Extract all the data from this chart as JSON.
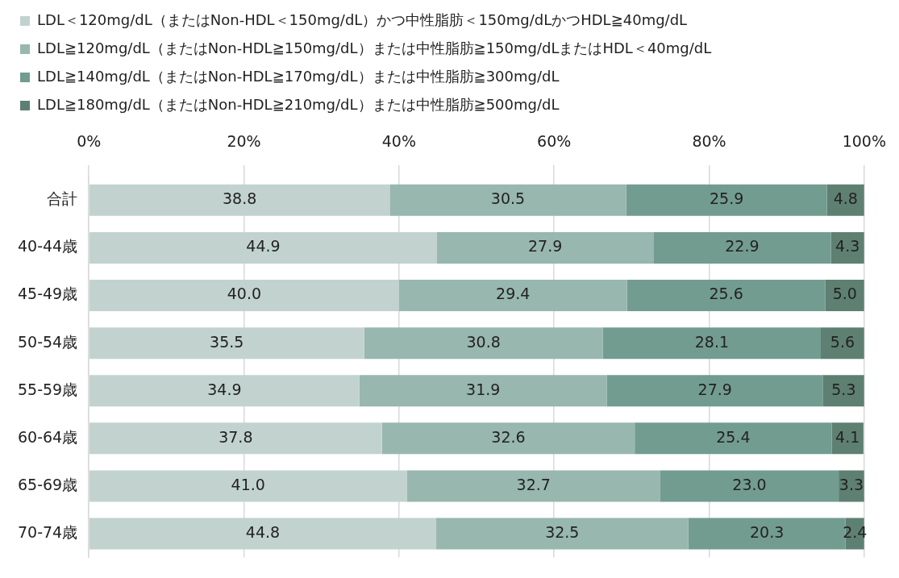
{
  "chart_data": {
    "type": "bar",
    "orientation": "horizontal",
    "stacked": true,
    "categories": [
      "合計",
      "40-44歳",
      "45-49歳",
      "50-54歳",
      "55-59歳",
      "60-64歳",
      "65-69歳",
      "70-74歳"
    ],
    "series": [
      {
        "name": "LDL＜120mg/dL（またはNon-HDL＜150mg/dL）かつ中性脂肪＜150mg/dLかつHDL≧40mg/dL",
        "color": "#c2d3cf",
        "values": [
          38.8,
          44.9,
          40.0,
          35.5,
          34.9,
          37.8,
          41.0,
          44.8
        ],
        "value_labels": [
          "38.8",
          "44.9",
          "40.0",
          "35.5",
          "34.9",
          "37.8",
          "41.0",
          "44.8"
        ]
      },
      {
        "name": "LDL≧120mg/dL（またはNon-HDL≧150mg/dL）または中性脂肪≧150mg/dLまたはHDL＜40mg/dL",
        "color": "#98b7ae",
        "values": [
          30.5,
          27.9,
          29.4,
          30.8,
          31.9,
          32.6,
          32.7,
          32.5
        ],
        "value_labels": [
          "30.5",
          "27.9",
          "29.4",
          "30.8",
          "31.9",
          "32.6",
          "32.7",
          "32.5"
        ]
      },
      {
        "name": "LDL≧140mg/dL（またはNon-HDL≧170mg/dL）または中性脂肪≧300mg/dL",
        "color": "#739c91",
        "values": [
          25.9,
          22.9,
          25.6,
          28.1,
          27.9,
          25.4,
          23.0,
          20.3
        ],
        "value_labels": [
          "25.9",
          "22.9",
          "25.6",
          "28.1",
          "27.9",
          "25.4",
          "23.0",
          "20.3"
        ]
      },
      {
        "name": "LDL≧180mg/dL（またはNon-HDL≧210mg/dL）または中性脂肪≧500mg/dL",
        "color": "#5e8073",
        "values": [
          4.8,
          4.3,
          5.0,
          5.6,
          5.3,
          4.1,
          3.3,
          2.4
        ],
        "value_labels": [
          "4.8",
          "4.3",
          "5.0",
          "5.6",
          "5.3",
          "4.1",
          "3.3",
          "2.4"
        ]
      }
    ],
    "xlim": [
      0,
      100
    ],
    "xticks": [
      {
        "value": 0,
        "label": "0%"
      },
      {
        "value": 20,
        "label": "20%"
      },
      {
        "value": 40,
        "label": "40%"
      },
      {
        "value": 60,
        "label": "60%"
      },
      {
        "value": 80,
        "label": "80%"
      },
      {
        "value": 100,
        "label": "100%"
      }
    ],
    "grid": "x",
    "legend": "top left"
  }
}
